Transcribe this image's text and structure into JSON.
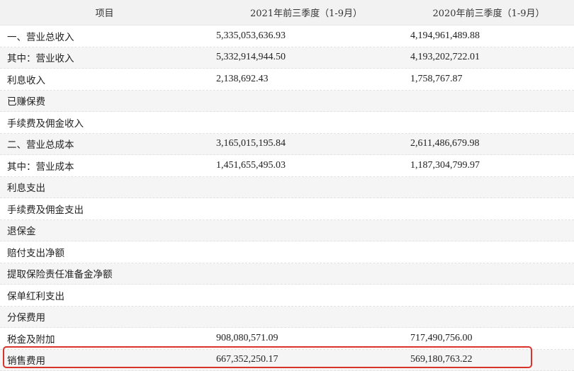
{
  "header": {
    "col_item": "项目",
    "col_2021": "2021年前三季度（1-9月）",
    "col_2020": "2020年前三季度（1-9月）"
  },
  "rows": [
    {
      "item": "一、营业总收入",
      "v2021": "5,335,053,636.93",
      "v2020": "4,194,961,489.88"
    },
    {
      "item": "其中：营业收入",
      "v2021": "5,332,914,944.50",
      "v2020": "4,193,202,722.01"
    },
    {
      "item": "利息收入",
      "v2021": "2,138,692.43",
      "v2020": "1,758,767.87"
    },
    {
      "item": "已赚保费",
      "v2021": "",
      "v2020": ""
    },
    {
      "item": "手续费及佣金收入",
      "v2021": "",
      "v2020": ""
    },
    {
      "item": "二、营业总成本",
      "v2021": "3,165,015,195.84",
      "v2020": "2,611,486,679.98"
    },
    {
      "item": "其中：营业成本",
      "v2021": "1,451,655,495.03",
      "v2020": "1,187,304,799.97"
    },
    {
      "item": "利息支出",
      "v2021": "",
      "v2020": ""
    },
    {
      "item": "手续费及佣金支出",
      "v2021": "",
      "v2020": ""
    },
    {
      "item": "退保金",
      "v2021": "",
      "v2020": ""
    },
    {
      "item": "赔付支出净额",
      "v2021": "",
      "v2020": ""
    },
    {
      "item": "提取保险责任准备金净额",
      "v2021": "",
      "v2020": ""
    },
    {
      "item": "保单红利支出",
      "v2021": "",
      "v2020": ""
    },
    {
      "item": "分保费用",
      "v2021": "",
      "v2020": ""
    },
    {
      "item": "税金及附加",
      "v2021": "908,080,571.09",
      "v2020": "717,490,756.00"
    },
    {
      "item": "销售费用",
      "v2021": "667,352,250.17",
      "v2020": "569,180,763.22"
    }
  ],
  "highlight_color": "#d9342b"
}
